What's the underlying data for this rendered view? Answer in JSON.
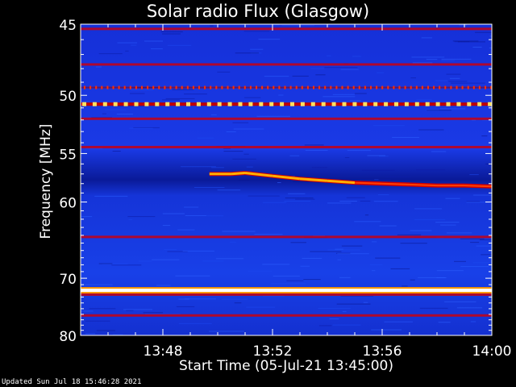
{
  "title": "Solar radio Flux (Glasgow)",
  "ylabel": "Frequency [MHz]",
  "xlabel": "Start Time (05-Jul-21 13:45:00)",
  "updated": "Updated Sun Jul 18 15:46:28 2021",
  "chart_data": {
    "type": "heatmap",
    "title": "Solar radio Flux (Glasgow)",
    "xlabel": "Start Time (05-Jul-21 13:45:00)",
    "ylabel": "Frequency [MHz]",
    "x_ticks": [
      "13:48",
      "13:52",
      "13:56",
      "14:00"
    ],
    "x_tick_minutes": [
      48,
      52,
      56,
      60
    ],
    "x_range_minutes": [
      45,
      60
    ],
    "y_ticks": [
      45,
      50,
      55,
      60,
      70,
      80
    ],
    "y_range_mhz": [
      45,
      80
    ],
    "y_scale": "reciprocal",
    "grid": false,
    "colormap": [
      "#000060",
      "#0a14c8",
      "#2850ff",
      "#c80000",
      "#ff9000",
      "#ffff80",
      "#ffffff"
    ],
    "constant_bands": [
      {
        "freq_mhz": 45.3,
        "level": "red"
      },
      {
        "freq_mhz": 47.7,
        "level": "red"
      },
      {
        "freq_mhz": 49.4,
        "level": "red-dotted"
      },
      {
        "freq_mhz": 50.7,
        "level": "yellow-dashed"
      },
      {
        "freq_mhz": 51.9,
        "level": "red"
      },
      {
        "freq_mhz": 54.4,
        "level": "red"
      },
      {
        "freq_mhz": 64.2,
        "level": "red"
      },
      {
        "freq_mhz": 71.9,
        "level": "white"
      },
      {
        "freq_mhz": 72.6,
        "level": "red"
      },
      {
        "freq_mhz": 76.2,
        "level": "red"
      }
    ],
    "drifting_feature": {
      "time_minutes": [
        49.7,
        50.5,
        51.0,
        52.0,
        53.0,
        54.0,
        55.0,
        56.0,
        57.0,
        58.0,
        59.0,
        60.0
      ],
      "freq_mhz": [
        57.0,
        57.0,
        56.9,
        57.2,
        57.5,
        57.7,
        57.9,
        58.0,
        58.1,
        58.2,
        58.2,
        58.3
      ]
    }
  }
}
